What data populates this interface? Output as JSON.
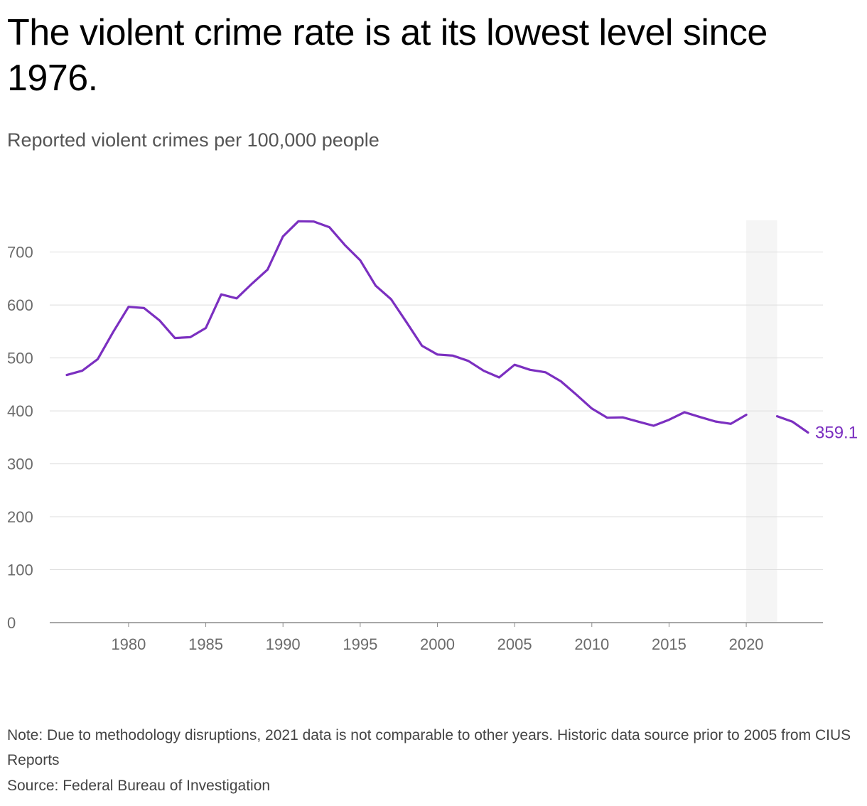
{
  "header": {
    "title": "The violent crime rate is at its lowest level since 1976.",
    "subtitle": "Reported violent crimes per 100,000 people"
  },
  "footer": {
    "note": "Note: Due to methodology disruptions, 2021 data is not comparable to other years. Historic data source prior to 2005 from CIUS Reports",
    "source": "Source: Federal Bureau of Investigation"
  },
  "colors": {
    "line": "#7b2fc0",
    "grid": "#dddddd",
    "axis": "#8c8c8c",
    "highlight": "#f5f5f5"
  },
  "chart_data": {
    "type": "line",
    "title": "The violent crime rate is at its lowest level since 1976.",
    "subtitle": "Reported violent crimes per 100,000 people",
    "xlabel": "",
    "ylabel": "",
    "ylim": [
      0,
      760
    ],
    "xlim": [
      1975,
      2025
    ],
    "yticks": [
      0,
      100,
      200,
      300,
      400,
      500,
      600,
      700
    ],
    "xticks": [
      1980,
      1985,
      1990,
      1995,
      2000,
      2005,
      2010,
      2015,
      2020
    ],
    "grid": true,
    "shaded_range": [
      2020,
      2022
    ],
    "end_label": "359.1",
    "series": [
      {
        "x": [
          1976,
          1977,
          1978,
          1979,
          1980,
          1981,
          1982,
          1983,
          1984,
          1985,
          1986,
          1987,
          1988,
          1989,
          1990,
          1991,
          1992,
          1993,
          1994,
          1995,
          1996,
          1997,
          1998,
          1999,
          2000,
          2001,
          2002,
          2003,
          2004,
          2005,
          2006,
          2007,
          2008,
          2009,
          2010,
          2011,
          2012,
          2013,
          2014,
          2015,
          2016,
          2017,
          2018,
          2019,
          2020,
          2022,
          2023,
          2024
        ],
        "values": [
          467.8,
          475.9,
          497.8,
          548.9,
          596.6,
          594.3,
          571.1,
          537.7,
          539.2,
          556.6,
          620.1,
          612.5,
          640.6,
          666.9,
          729.6,
          758.2,
          757.7,
          747.1,
          713.6,
          684.5,
          636.6,
          611.0,
          567.6,
          523.0,
          506.5,
          504.5,
          494.4,
          475.8,
          463.2,
          487.2,
          477.6,
          472.9,
          455.9,
          430.6,
          404.5,
          387.1,
          387.8,
          379.7,
          372.0,
          383.2,
          397.5,
          388.5,
          380.0,
          375.6,
          392.6,
          389.9,
          379.4,
          359.1
        ]
      }
    ]
  }
}
